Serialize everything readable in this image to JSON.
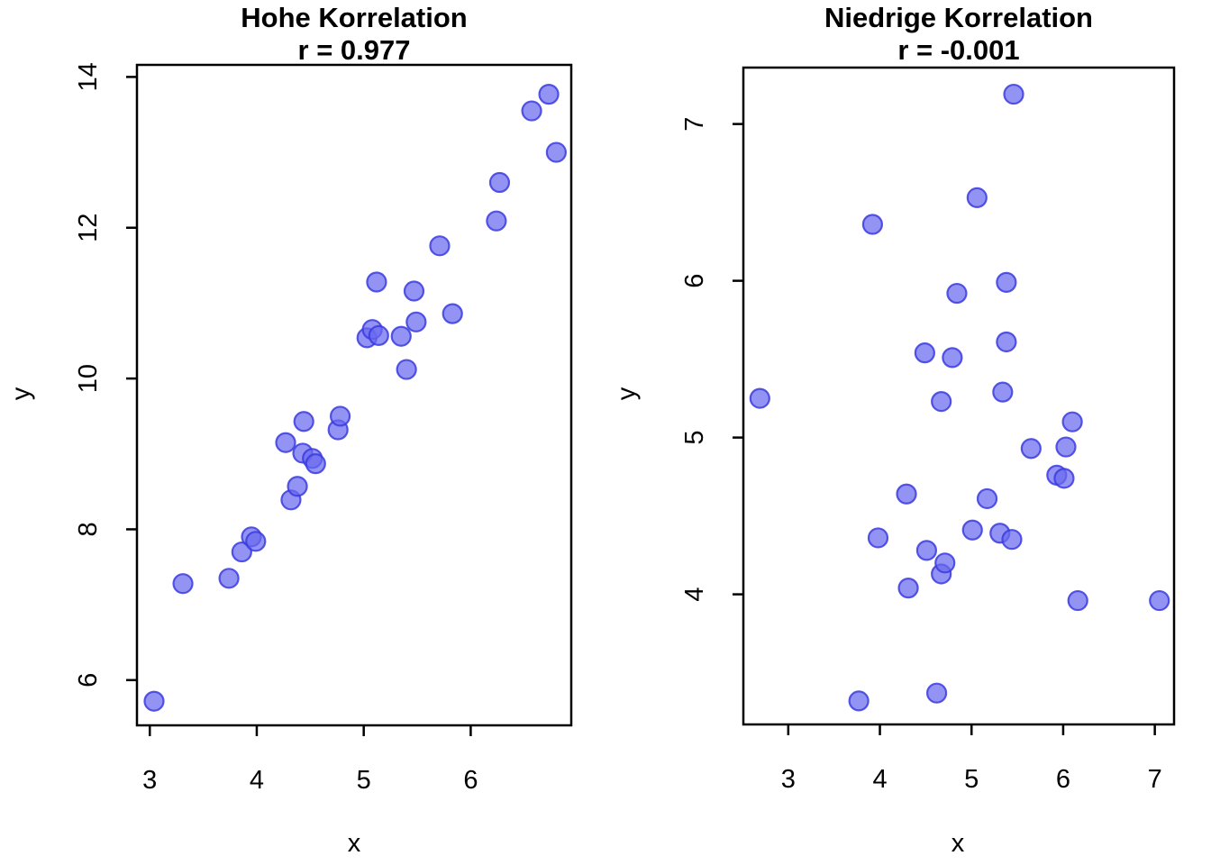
{
  "figure": {
    "background": "#ffffff",
    "axis_color": "#000000",
    "point_fill": "#6A6AEF",
    "point_stroke": "#3B3BE0"
  },
  "chart_data": [
    {
      "type": "scatter",
      "title": "Hohe Korrelation",
      "subtitle": "r = 0.977",
      "correlation": 0.977,
      "xlabel": "x",
      "ylabel": "y",
      "xlim": [
        2.88,
        6.94
      ],
      "ylim": [
        5.4,
        14.16
      ],
      "xticks": [
        3,
        4,
        5,
        6
      ],
      "yticks": [
        6,
        8,
        10,
        12,
        14
      ],
      "legend": "none",
      "grid": false,
      "points": [
        [
          3.04,
          5.72
        ],
        [
          3.31,
          7.28
        ],
        [
          3.74,
          7.35
        ],
        [
          3.86,
          7.7
        ],
        [
          3.95,
          7.9
        ],
        [
          3.99,
          7.84
        ],
        [
          4.27,
          9.15
        ],
        [
          4.32,
          8.39
        ],
        [
          4.38,
          8.57
        ],
        [
          4.43,
          9.01
        ],
        [
          4.44,
          9.43
        ],
        [
          4.52,
          8.94
        ],
        [
          4.55,
          8.87
        ],
        [
          4.76,
          9.32
        ],
        [
          4.78,
          9.5
        ],
        [
          5.03,
          10.54
        ],
        [
          5.08,
          10.65
        ],
        [
          5.12,
          11.28
        ],
        [
          5.14,
          10.57
        ],
        [
          5.35,
          10.56
        ],
        [
          5.4,
          10.12
        ],
        [
          5.47,
          11.16
        ],
        [
          5.49,
          10.75
        ],
        [
          5.71,
          11.76
        ],
        [
          5.83,
          10.86
        ],
        [
          6.24,
          12.09
        ],
        [
          6.27,
          12.6
        ],
        [
          6.57,
          13.55
        ],
        [
          6.73,
          13.77
        ],
        [
          6.8,
          13.0
        ]
      ]
    },
    {
      "type": "scatter",
      "title": "Niedrige Korrelation",
      "subtitle": "r = -0.001",
      "correlation": -0.001,
      "xlabel": "x",
      "ylabel": "y",
      "xlim": [
        2.51,
        7.21
      ],
      "ylim": [
        3.17,
        7.36
      ],
      "xticks": [
        3,
        4,
        5,
        6,
        7
      ],
      "yticks": [
        4,
        5,
        6,
        7
      ],
      "legend": "none",
      "grid": false,
      "points": [
        [
          2.69,
          5.25
        ],
        [
          3.77,
          3.32
        ],
        [
          3.92,
          6.36
        ],
        [
          3.98,
          4.36
        ],
        [
          4.29,
          4.64
        ],
        [
          4.31,
          4.04
        ],
        [
          4.49,
          5.54
        ],
        [
          4.51,
          4.28
        ],
        [
          4.62,
          3.37
        ],
        [
          4.67,
          5.23
        ],
        [
          4.67,
          4.13
        ],
        [
          4.71,
          4.2
        ],
        [
          4.79,
          5.51
        ],
        [
          4.84,
          5.92
        ],
        [
          5.01,
          4.41
        ],
        [
          5.06,
          6.53
        ],
        [
          5.17,
          4.61
        ],
        [
          5.31,
          4.39
        ],
        [
          5.34,
          5.29
        ],
        [
          5.38,
          5.99
        ],
        [
          5.38,
          5.61
        ],
        [
          5.44,
          4.35
        ],
        [
          5.46,
          7.19
        ],
        [
          5.65,
          4.93
        ],
        [
          5.93,
          4.76
        ],
        [
          6.01,
          4.74
        ],
        [
          6.03,
          4.94
        ],
        [
          6.1,
          5.1
        ],
        [
          6.16,
          3.96
        ],
        [
          7.05,
          3.96
        ]
      ]
    }
  ]
}
